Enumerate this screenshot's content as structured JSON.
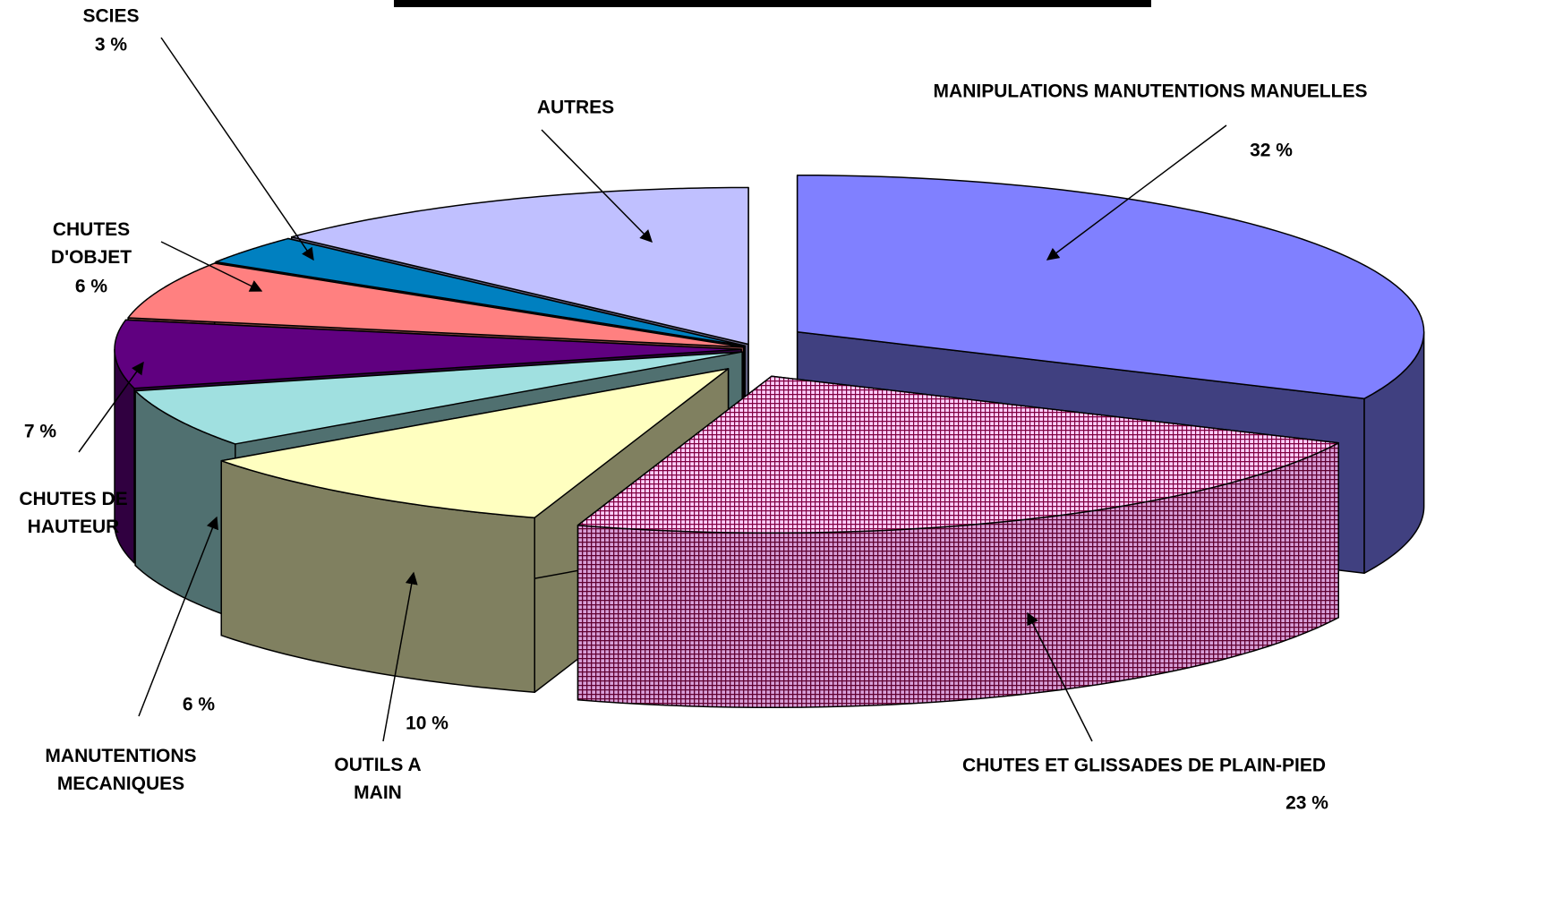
{
  "chart_data": {
    "type": "pie3d",
    "categories": [
      "MANIPULATIONS MANUTENTIONS MANUELLES",
      "CHUTES ET GLISSADES DE PLAIN-PIED",
      "OUTILS A MAIN",
      "MANUTENTIONS MECANIQUES",
      "CHUTES DE HAUTEUR",
      "CHUTES D'OBJET",
      "SCIES",
      "AUTRES"
    ],
    "values": [
      32,
      23,
      10,
      6,
      7,
      6,
      3,
      13
    ],
    "value_labels": [
      "32 %",
      "23 %",
      "10 %",
      "6 %",
      "7 %",
      "6 %",
      "3 %",
      null
    ],
    "colors": [
      "#8080ff",
      "#ffc8ff",
      "#ffffc0",
      "#a0e0e0",
      "#600080",
      "#ff8080",
      "#0080c0",
      "#c0c0ff"
    ],
    "patterns": [
      null,
      "grid",
      null,
      null,
      null,
      null,
      null,
      null
    ]
  }
}
